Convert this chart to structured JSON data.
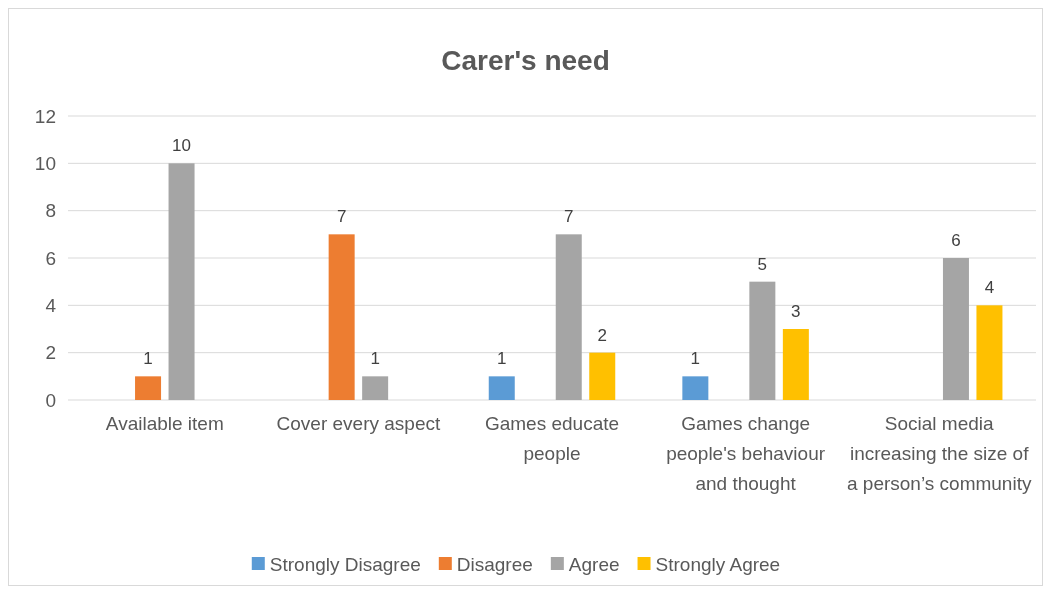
{
  "chart_data": {
    "type": "bar",
    "title": "Carer's need",
    "categories": [
      "Available item",
      "Cover every aspect",
      "Games educate people",
      "Games change people's behaviour and thought",
      "Social media increasing the size of a person’s community"
    ],
    "series": [
      {
        "name": "Strongly Disagree",
        "color": "#5b9bd5",
        "values": [
          null,
          null,
          1,
          1,
          null
        ]
      },
      {
        "name": "Disagree",
        "color": "#ed7d31",
        "values": [
          1,
          7,
          null,
          null,
          null
        ]
      },
      {
        "name": "Agree",
        "color": "#a5a5a5",
        "values": [
          10,
          1,
          7,
          5,
          6
        ]
      },
      {
        "name": "Strongly Agree",
        "color": "#ffc000",
        "values": [
          null,
          null,
          2,
          3,
          4
        ]
      }
    ],
    "ylim": [
      0,
      12
    ],
    "yticks": [
      0,
      2,
      4,
      6,
      8,
      10,
      12
    ],
    "grid": "y",
    "legend": "bottom",
    "data_labels": true
  }
}
